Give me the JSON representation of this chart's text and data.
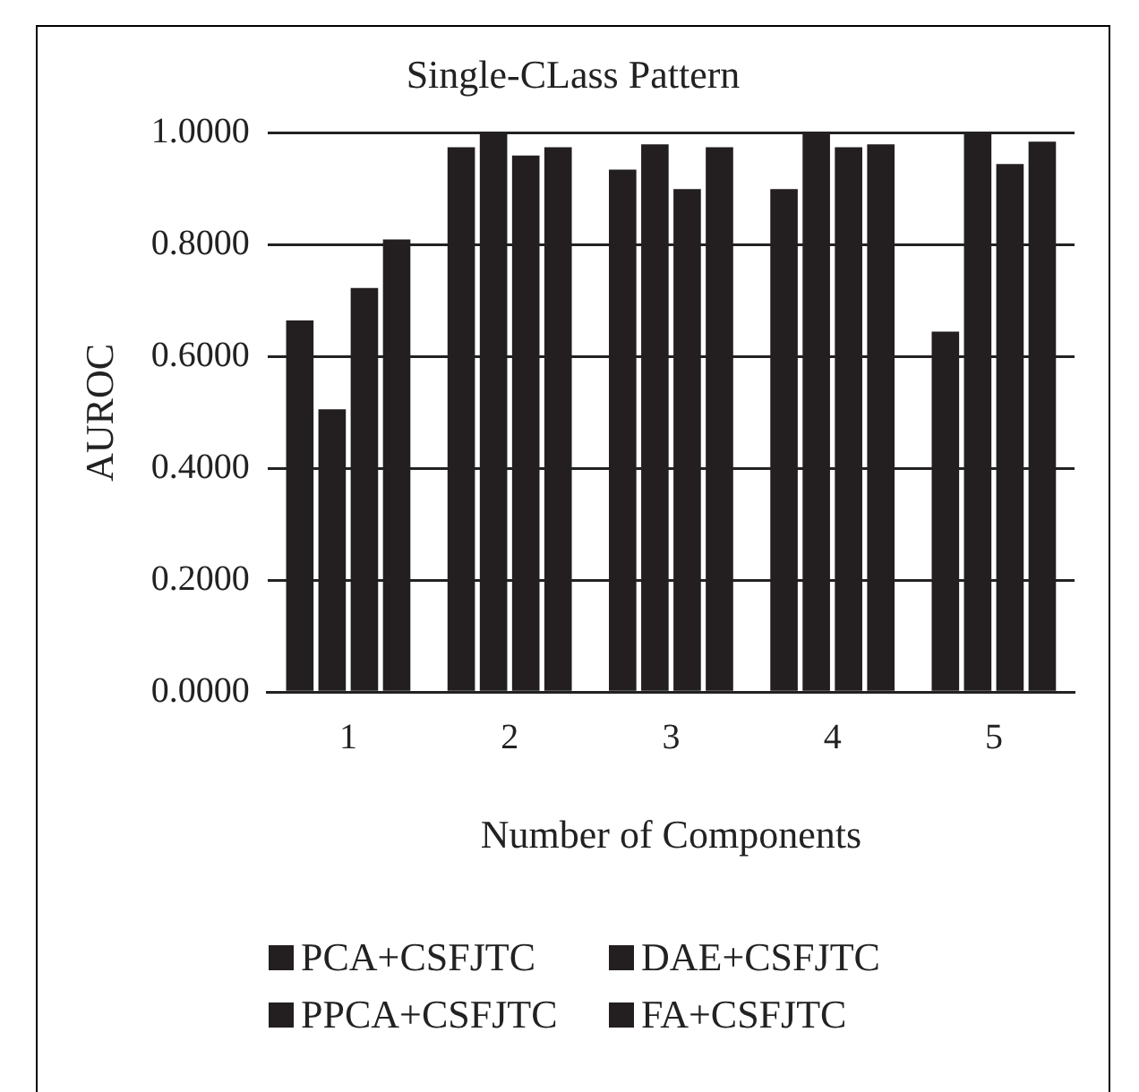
{
  "chart_data": {
    "type": "bar",
    "title": "Single-CLass Pattern",
    "xlabel": "Number of Components",
    "ylabel": "AUROC",
    "categories": [
      "1",
      "2",
      "3",
      "4",
      "5"
    ],
    "series": [
      {
        "name": "PCA+CSFJTC",
        "color": "#231f20",
        "values": [
          0.665,
          0.975,
          0.935,
          0.9,
          0.645
        ]
      },
      {
        "name": "DAE+CSFJTC",
        "color": "#231f20",
        "values": [
          0.506,
          1.0,
          0.98,
          1.0,
          1.0
        ]
      },
      {
        "name": "PPCA+CSFJTC",
        "color": "#231f20",
        "values": [
          0.723,
          0.96,
          0.9,
          0.975,
          0.945
        ]
      },
      {
        "name": "FA+CSFJTC",
        "color": "#231f20",
        "values": [
          0.81,
          0.975,
          0.975,
          0.98,
          0.985
        ]
      }
    ],
    "ylim": [
      0,
      1
    ],
    "yticks": [
      {
        "value": 0,
        "label": "0.0000"
      },
      {
        "value": 0.2,
        "label": "0.2000"
      },
      {
        "value": 0.4,
        "label": "0.4000"
      },
      {
        "value": 0.6,
        "label": "0.6000"
      },
      {
        "value": 0.8,
        "label": "0.8000"
      },
      {
        "value": 1,
        "label": "1.0000"
      }
    ],
    "grid": "y",
    "legend": "bottom"
  }
}
